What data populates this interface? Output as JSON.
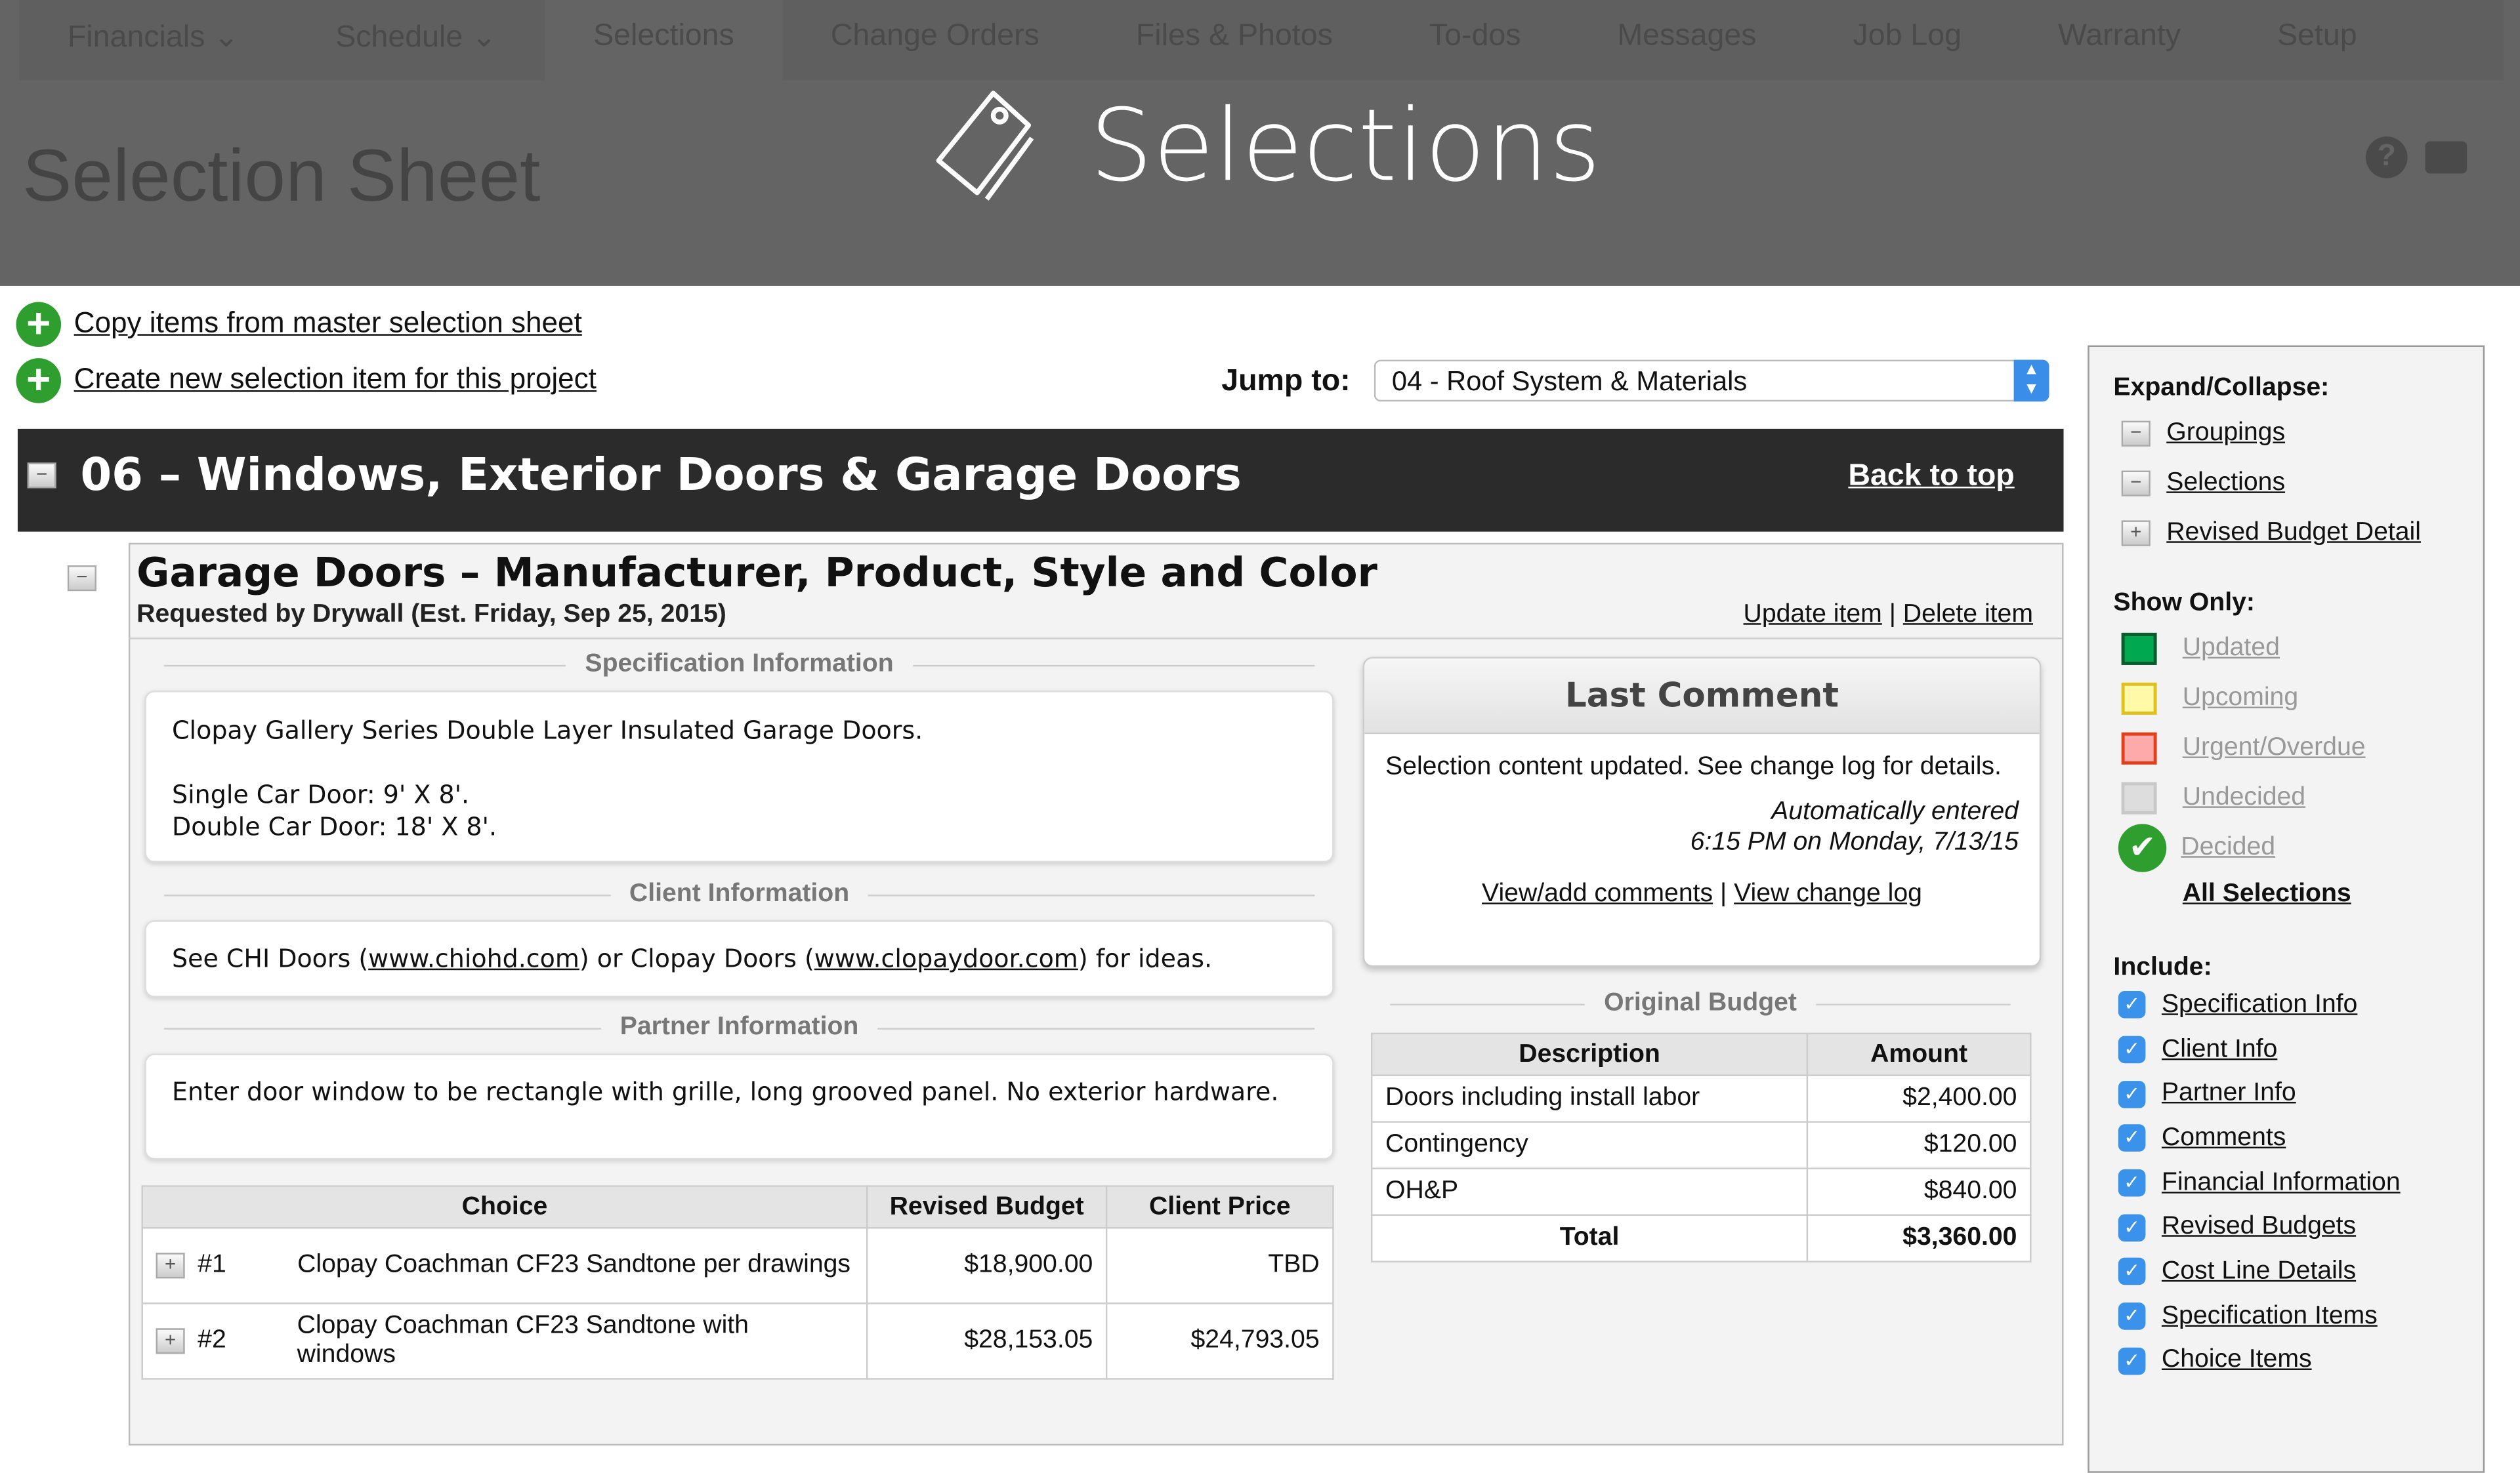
{
  "nav": {
    "tabs": [
      {
        "label": "Financials ⌄"
      },
      {
        "label": "Schedule ⌄"
      },
      {
        "label": "Selections"
      },
      {
        "label": "Change Orders"
      },
      {
        "label": "Files & Photos"
      },
      {
        "label": "To-dos"
      },
      {
        "label": "Messages"
      },
      {
        "label": "Job Log"
      },
      {
        "label": "Warranty"
      },
      {
        "label": "Setup"
      }
    ]
  },
  "header": {
    "page_title": "Selection Sheet",
    "app_title": "Selections",
    "help_icon": "help-icon",
    "print_icon": "print-icon"
  },
  "actions": {
    "copy_link": "Copy items from master selection sheet",
    "create_link": "Create new selection item for this project"
  },
  "jump": {
    "label": "Jump to:",
    "value": "04 - Roof System & Materials"
  },
  "group": {
    "title": "06 – Windows, Exterior Doors & Garage Doors",
    "back_to_top": "Back to top"
  },
  "item": {
    "title": "Garage Doors – Manufacturer, Product, Style and Color",
    "subtitle": "Requested by Drywall (Est. Friday, Sep 25, 2015)",
    "update": "Update item",
    "delete": "Delete item",
    "sep": "|",
    "spec_label": "Specification Information",
    "spec_line1": "Clopay Gallery Series Double Layer Insulated Garage Doors.",
    "spec_line2": "Single Car Door: 9' X 8'.",
    "spec_line3": "Double Car Door: 18' X 8'.",
    "client_label": "Client Information",
    "client_pre": "See CHI Doors (",
    "client_link1": "www.chiohd.com",
    "client_mid": ") or Clopay Doors (",
    "client_link2": "www.clopaydoor.com",
    "client_post": ") for ideas.",
    "partner_label": "Partner Information",
    "partner_text": "Enter door window to be rectangle with grille, long grooved panel. No exterior hardware."
  },
  "choices": {
    "headers": [
      "Choice",
      "Revised Budget",
      "Client Price"
    ],
    "rows": [
      {
        "num": "#1",
        "name": "Clopay Coachman CF23 Sandtone per drawings",
        "budget": "$18,900.00",
        "price": "TBD"
      },
      {
        "num": "#2",
        "name": "Clopay Coachman CF23 Sandtone with windows",
        "budget": "$28,153.05",
        "price": "$24,793.05"
      }
    ]
  },
  "comment": {
    "title": "Last Comment",
    "text": "Selection content updated. See change log for details.",
    "auto": "Automatically entered",
    "when": "6:15 PM on Monday, 7/13/15",
    "view_comments": "View/add comments",
    "sep": "|",
    "view_log": "View change log"
  },
  "budget": {
    "label": "Original Budget",
    "headers": [
      "Description",
      "Amount"
    ],
    "rows": [
      {
        "desc": "Doors including install labor",
        "amt": "$2,400.00"
      },
      {
        "desc": "Contingency",
        "amt": "$120.00"
      },
      {
        "desc": "OH&P",
        "amt": "$840.00"
      }
    ],
    "total_label": "Total",
    "total": "$3,360.00"
  },
  "sidebar": {
    "expand_title": "Expand/Collapse:",
    "expand": [
      {
        "label": "Groupings",
        "state": "−"
      },
      {
        "label": "Selections",
        "state": "−"
      },
      {
        "label": "Revised Budget Detail",
        "state": "+"
      }
    ],
    "show_title": "Show Only:",
    "show": [
      {
        "label": "Updated",
        "color": "#00a84f"
      },
      {
        "label": "Upcoming",
        "color": "#fff9a8"
      },
      {
        "label": "Urgent/Overdue",
        "color": "#ffaaaa"
      },
      {
        "label": "Undecided",
        "color": "#dddddd"
      },
      {
        "label": "Decided",
        "color": "#2e9e2e"
      }
    ],
    "all": "All Selections",
    "include_title": "Include:",
    "include": [
      {
        "label": "Specification Info"
      },
      {
        "label": "Client Info"
      },
      {
        "label": "Partner Info"
      },
      {
        "label": "Comments"
      },
      {
        "label": "Financial Information"
      },
      {
        "label": "Revised Budgets"
      },
      {
        "label": "Cost Line Details"
      },
      {
        "label": "Specification Items"
      },
      {
        "label": "Choice Items"
      }
    ]
  }
}
